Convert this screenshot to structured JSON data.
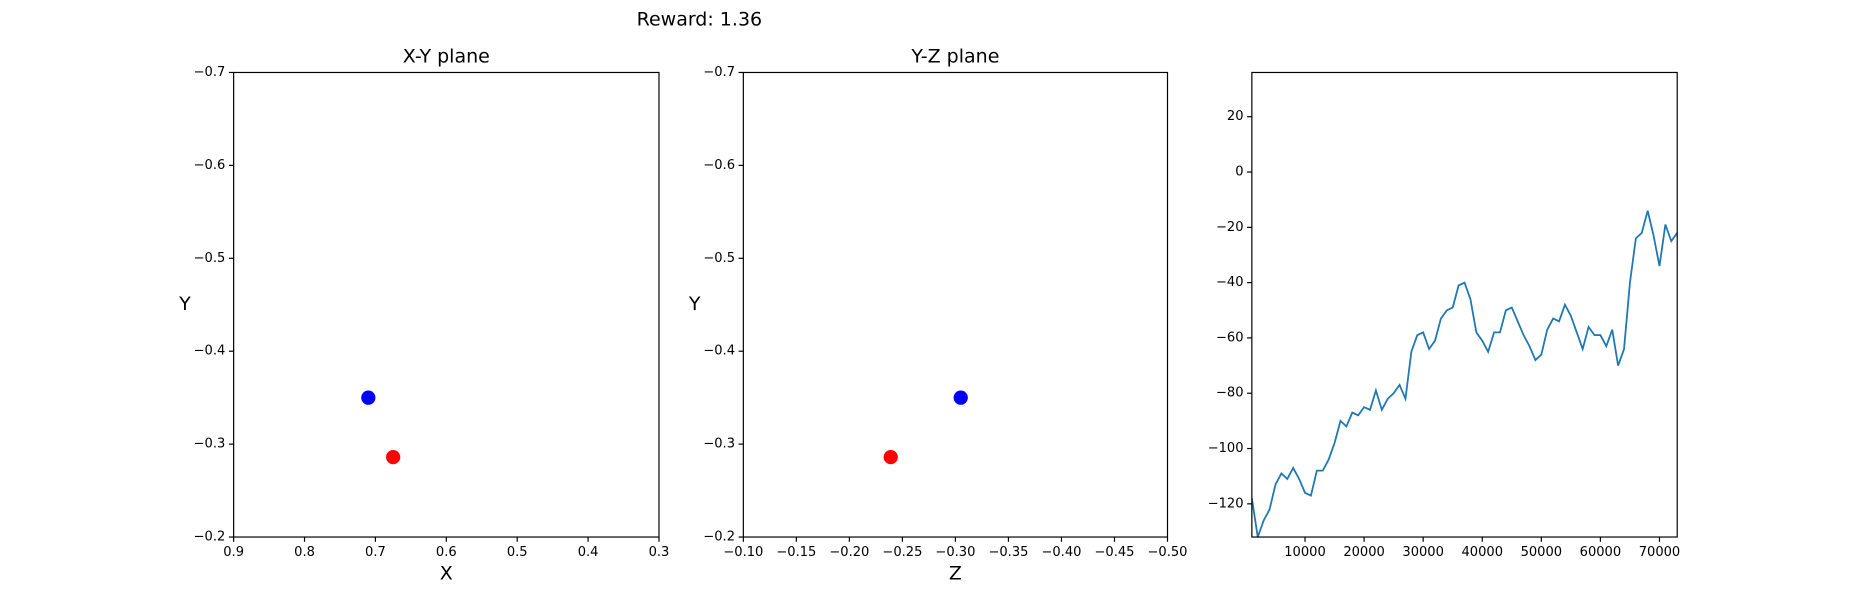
{
  "title": "Reward: 1.36",
  "chart_data": [
    {
      "type": "scatter",
      "title": "X-Y plane",
      "x_label": "X",
      "y_label": "Y",
      "xlim": [
        0.9,
        0.3
      ],
      "xticks": [
        0.9,
        0.8,
        0.7,
        0.6,
        0.5,
        0.4,
        0.3
      ],
      "ylim": [
        -0.2,
        -0.7
      ],
      "yticks": [
        {
          "value": -0.7,
          "label": "−0.7"
        },
        {
          "value": -0.6,
          "label": "−0.6"
        },
        {
          "value": -0.5,
          "label": "−0.5"
        },
        {
          "value": -0.4,
          "label": "−0.4"
        },
        {
          "value": -0.3,
          "label": "−0.3"
        },
        {
          "value": -0.2,
          "label": "−0.2"
        }
      ],
      "series": [
        {
          "color": "#0000ff",
          "x": [
            0.71
          ],
          "values": [
            -0.35
          ]
        },
        {
          "color": "#ff0000",
          "x": [
            0.675
          ],
          "values": [
            -0.286
          ]
        }
      ]
    },
    {
      "type": "scatter",
      "title": "Y-Z plane",
      "x_label": "Z",
      "y_label": "Y",
      "xlim": [
        -0.1,
        -0.5
      ],
      "xticks": [
        {
          "value": -0.1,
          "label": "−0.10"
        },
        {
          "value": -0.15,
          "label": "−0.15"
        },
        {
          "value": -0.2,
          "label": "−0.20"
        },
        {
          "value": -0.25,
          "label": "−0.25"
        },
        {
          "value": -0.3,
          "label": "−0.30"
        },
        {
          "value": -0.35,
          "label": "−0.35"
        },
        {
          "value": -0.4,
          "label": "−0.40"
        },
        {
          "value": -0.45,
          "label": "−0.45"
        },
        {
          "value": -0.5,
          "label": "−0.50"
        }
      ],
      "ylim": [
        -0.2,
        -0.7
      ],
      "yticks": [
        {
          "value": -0.7,
          "label": "−0.7"
        },
        {
          "value": -0.6,
          "label": "−0.6"
        },
        {
          "value": -0.5,
          "label": "−0.5"
        },
        {
          "value": -0.4,
          "label": "−0.4"
        },
        {
          "value": -0.3,
          "label": "−0.3"
        },
        {
          "value": -0.2,
          "label": "−0.2"
        }
      ],
      "series": [
        {
          "color": "#0000ff",
          "x": [
            -0.305
          ],
          "values": [
            -0.35
          ]
        },
        {
          "color": "#ff0000",
          "x": [
            -0.239
          ],
          "values": [
            -0.286
          ]
        }
      ]
    },
    {
      "type": "line",
      "xlim": [
        1000,
        73000
      ],
      "xticks": [
        10000,
        20000,
        30000,
        40000,
        50000,
        60000,
        70000
      ],
      "ylim": [
        -132,
        36
      ],
      "yticks": [
        {
          "value": -120,
          "label": "−120"
        },
        {
          "value": -100,
          "label": "−100"
        },
        {
          "value": -80,
          "label": "−80"
        },
        {
          "value": -60,
          "label": "−60"
        },
        {
          "value": -40,
          "label": "−40"
        },
        {
          "value": -20,
          "label": "−20"
        },
        0,
        20
      ],
      "series": [
        {
          "color": "#1f77b4",
          "x": [
            1000,
            2000,
            3000,
            4000,
            5000,
            6000,
            7000,
            8000,
            9000,
            10000,
            11000,
            12000,
            13000,
            14000,
            15000,
            16000,
            17000,
            18000,
            19000,
            20000,
            21000,
            22000,
            23000,
            24000,
            25000,
            26000,
            27000,
            28000,
            29000,
            30000,
            31000,
            32000,
            33000,
            34000,
            35000,
            36000,
            37000,
            38000,
            39000,
            40000,
            41000,
            42000,
            43000,
            44000,
            45000,
            46000,
            47000,
            48000,
            49000,
            50000,
            51000,
            52000,
            53000,
            54000,
            55000,
            56000,
            57000,
            58000,
            59000,
            60000,
            61000,
            62000,
            63000,
            64000,
            65000,
            66000,
            67000,
            68000,
            69000,
            70000,
            71000,
            72000,
            73000
          ],
          "values": [
            -118,
            -132,
            -126,
            -122,
            -113,
            -109,
            -111,
            -107,
            -111,
            -116,
            -117,
            -108,
            -108,
            -104,
            -98,
            -90,
            -92,
            -87,
            -88,
            -85,
            -86,
            -79,
            -86,
            -82,
            -80,
            -77,
            -82,
            -65,
            -59,
            -58,
            -64,
            -61,
            -53,
            -50,
            -49,
            -41,
            -40,
            -46,
            -58,
            -61,
            -65,
            -58,
            -58,
            -50,
            -49,
            -54,
            -59,
            -63,
            -68,
            -66,
            -57,
            -53,
            -54,
            -48,
            -52,
            -58,
            -64,
            -56,
            -59,
            -59,
            -63,
            -57,
            -70,
            -64,
            -40,
            -24,
            -22,
            -14,
            -23,
            -34,
            -19,
            -25,
            -22
          ]
        }
      ]
    }
  ]
}
